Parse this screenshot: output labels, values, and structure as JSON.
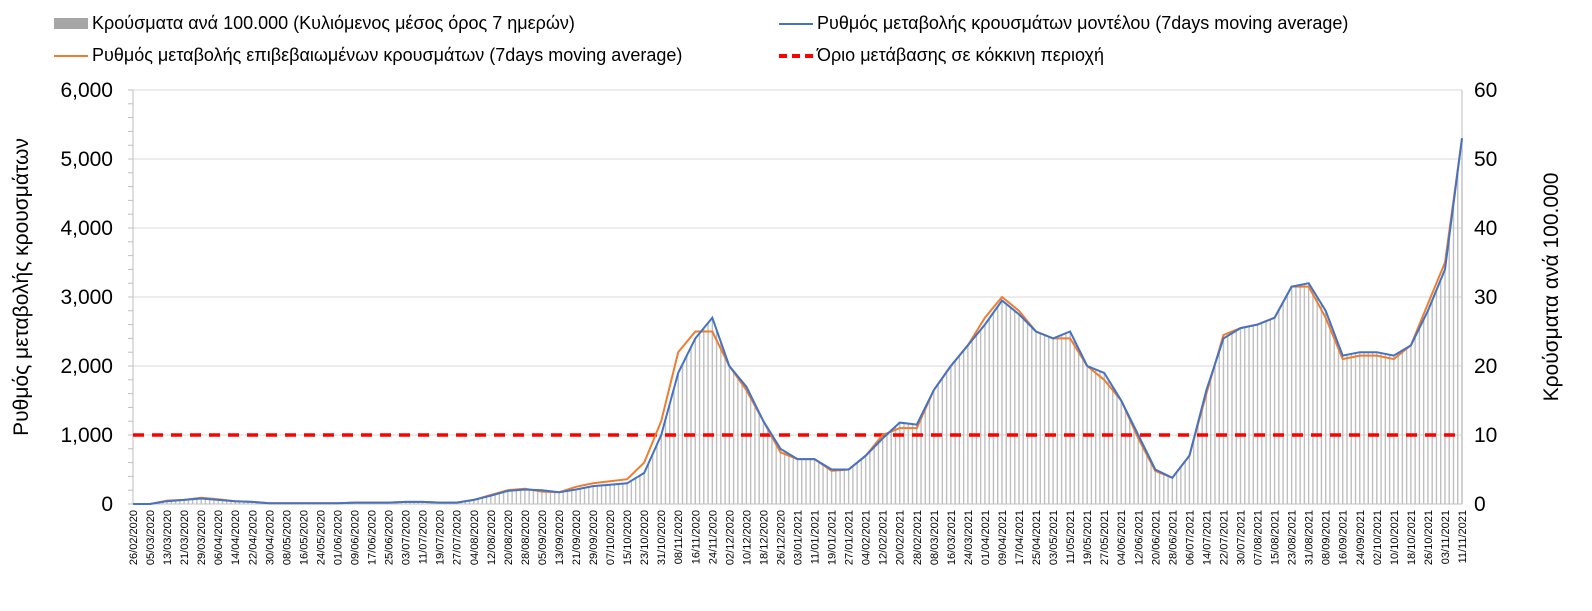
{
  "chart_data": {
    "type": "bar+line",
    "legend": {
      "placement": "top",
      "items": [
        {
          "key": "bars",
          "label": "Κρούσματα ανά 100.000 (Κυλιόμενος μέσος όρος 7 ημερών)",
          "color": "#a6a6a6"
        },
        {
          "key": "model",
          "label": "Ρυθμός μεταβολής κρουσμάτων μοντέλου (7days moving average)",
          "color": "#4472c4"
        },
        {
          "key": "confirmed",
          "label": "Ρυθμός μεταβολής επιβεβαιωμένων κρουσμάτων (7days moving average)",
          "color": "#ed7d31"
        },
        {
          "key": "threshold",
          "label": "Όριο μετάβασης σε κόκκινη περιοχή",
          "color": "#ff0000"
        }
      ]
    },
    "ylabel_left": "Ρυθμός μεταβολής κρουσμάτων",
    "ylabel_right": "Κρούσματα ανά 100.000",
    "ylim_left": [
      0,
      6000
    ],
    "ylim_right": [
      0,
      60
    ],
    "yticks_left": [
      "0",
      "1,000",
      "2,000",
      "3,000",
      "4,000",
      "5,000",
      "6,000"
    ],
    "yticks_right": [
      "0",
      "10",
      "20",
      "30",
      "40",
      "50",
      "60"
    ],
    "grid": true,
    "x_dates": [
      "26/02/2020",
      "05/03/2020",
      "13/03/2020",
      "21/03/2020",
      "29/03/2020",
      "06/04/2020",
      "14/04/2020",
      "22/04/2020",
      "30/04/2020",
      "08/05/2020",
      "16/05/2020",
      "24/05/2020",
      "01/06/2020",
      "09/06/2020",
      "17/06/2020",
      "25/06/2020",
      "03/07/2020",
      "11/07/2020",
      "19/07/2020",
      "27/07/2020",
      "04/08/2020",
      "12/08/2020",
      "20/08/2020",
      "28/08/2020",
      "05/09/2020",
      "13/09/2020",
      "21/09/2020",
      "29/09/2020",
      "07/10/2020",
      "15/10/2020",
      "23/10/2020",
      "31/10/2020",
      "08/11/2020",
      "16/11/2020",
      "24/11/2020",
      "02/12/2020",
      "10/12/2020",
      "18/12/2020",
      "26/12/2020",
      "03/01/2021",
      "11/01/2021",
      "19/01/2021",
      "27/01/2021",
      "04/02/2021",
      "12/02/2021",
      "20/02/2021",
      "28/02/2021",
      "08/03/2021",
      "16/03/2021",
      "24/03/2021",
      "01/04/2021",
      "09/04/2021",
      "17/04/2021",
      "25/04/2021",
      "03/05/2021",
      "11/05/2021",
      "19/05/2021",
      "27/05/2021",
      "04/06/2021",
      "12/06/2021",
      "20/06/2021",
      "28/06/2021",
      "06/07/2021",
      "14/07/2021",
      "22/07/2021",
      "30/07/2021",
      "07/08/2021",
      "15/08/2021",
      "23/08/2021",
      "31/08/2021",
      "08/09/2021",
      "16/09/2021",
      "24/09/2021",
      "02/10/2021",
      "10/10/2021",
      "18/10/2021",
      "26/10/2021",
      "03/11/2021",
      "11/11/2021"
    ],
    "threshold": 1000,
    "model_rate": [
      0,
      0,
      40,
      60,
      80,
      60,
      40,
      30,
      10,
      10,
      10,
      10,
      10,
      20,
      20,
      20,
      30,
      30,
      20,
      20,
      60,
      120,
      190,
      210,
      200,
      170,
      210,
      260,
      280,
      300,
      450,
      1000,
      1900,
      2400,
      2700,
      2000,
      1700,
      1200,
      800,
      650,
      650,
      500,
      500,
      700,
      950,
      1180,
      1150,
      1650,
      2000,
      2300,
      2600,
      2950,
      2750,
      2500,
      2400,
      2500,
      2000,
      1900,
      1500,
      1000,
      500,
      380,
      700,
      1650,
      2400,
      2550,
      2600,
      2700,
      3150,
      3200,
      2800,
      2150,
      2200,
      2200,
      2150,
      2300,
      2800,
      3400,
      5300
    ],
    "confirmed_rate": [
      0,
      0,
      50,
      60,
      90,
      70,
      40,
      30,
      10,
      10,
      10,
      10,
      10,
      20,
      20,
      20,
      30,
      30,
      20,
      20,
      60,
      130,
      200,
      220,
      180,
      170,
      250,
      300,
      330,
      360,
      600,
      1200,
      2200,
      2500,
      2500,
      2000,
      1650,
      1200,
      750,
      650,
      650,
      480,
      500,
      700,
      1000,
      1100,
      1100,
      1650,
      2000,
      2300,
      2700,
      3000,
      2800,
      2500,
      2400,
      2400,
      2000,
      1800,
      1500,
      950,
      480,
      380,
      700,
      1600,
      2450,
      2550,
      2600,
      2700,
      3150,
      3150,
      2700,
      2100,
      2150,
      2150,
      2100,
      2300,
      2900,
      3500,
      5300
    ],
    "cases_per_100k": [
      0,
      0,
      0.4,
      0.6,
      0.8,
      0.6,
      0.4,
      0.3,
      0.1,
      0.1,
      0.1,
      0.1,
      0.1,
      0.2,
      0.2,
      0.2,
      0.3,
      0.3,
      0.2,
      0.2,
      0.6,
      1.2,
      1.9,
      2.1,
      2.0,
      1.7,
      2.1,
      2.6,
      2.8,
      3.0,
      4.5,
      10,
      19,
      24,
      27,
      20,
      17,
      12,
      8,
      6.5,
      6.5,
      5,
      5,
      7,
      9.5,
      11.8,
      11.5,
      16.5,
      20,
      23,
      26,
      29.5,
      27.5,
      25,
      24,
      25,
      20,
      19,
      15,
      10,
      5,
      3.8,
      7,
      16.5,
      24,
      25.5,
      26,
      27,
      31.5,
      32,
      28,
      21.5,
      22,
      22,
      21.5,
      23,
      28,
      34,
      53
    ]
  }
}
